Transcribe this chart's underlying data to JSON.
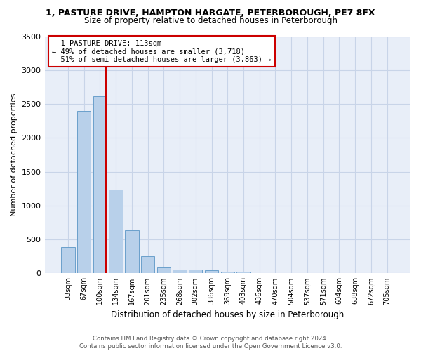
{
  "title_line1": "1, PASTURE DRIVE, HAMPTON HARGATE, PETERBOROUGH, PE7 8FX",
  "title_line2": "Size of property relative to detached houses in Peterborough",
  "xlabel": "Distribution of detached houses by size in Peterborough",
  "ylabel": "Number of detached properties",
  "footer_line1": "Contains HM Land Registry data © Crown copyright and database right 2024.",
  "footer_line2": "Contains public sector information licensed under the Open Government Licence v3.0.",
  "bar_categories": [
    "33sqm",
    "67sqm",
    "100sqm",
    "134sqm",
    "167sqm",
    "201sqm",
    "235sqm",
    "268sqm",
    "302sqm",
    "336sqm",
    "369sqm",
    "403sqm",
    "436sqm",
    "470sqm",
    "504sqm",
    "537sqm",
    "571sqm",
    "604sqm",
    "638sqm",
    "672sqm",
    "705sqm"
  ],
  "bar_values": [
    390,
    2400,
    2610,
    1240,
    640,
    255,
    90,
    60,
    55,
    45,
    30,
    20,
    0,
    0,
    0,
    0,
    0,
    0,
    0,
    0,
    0
  ],
  "bar_color": "#b8d0ea",
  "bar_edge_color": "#6aa0cb",
  "ylim": [
    0,
    3500
  ],
  "yticks": [
    0,
    500,
    1000,
    1500,
    2000,
    2500,
    3000,
    3500
  ],
  "property_label": "1 PASTURE DRIVE: 113sqm",
  "pct_smaller": 49,
  "n_smaller": 3718,
  "pct_larger": 51,
  "n_larger": 3863,
  "red_line_x": 2.4,
  "annotation_box_color": "#ffffff",
  "annotation_box_edge": "#cc0000",
  "grid_color": "#c8d4e8",
  "bg_color": "#e8eef8"
}
